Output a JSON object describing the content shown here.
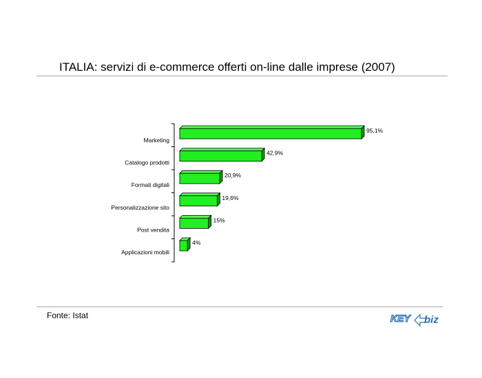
{
  "header": {
    "title": "ITALIA: servizi di e-commerce offerti on-line dalle imprese (2007)"
  },
  "footer": {
    "source": "Fonte: Istat",
    "logo": {
      "text_left": "KEY",
      "text_right": "biz",
      "accent": "#2a6fb5"
    }
  },
  "chart_data": {
    "type": "bar",
    "orientation": "horizontal",
    "style": "3d",
    "categories": [
      "Marketing",
      "Catalogo prodotti",
      "Formati digitali",
      "Personalizzazione sito",
      "Post vendita",
      "Applicazioni mobili"
    ],
    "values": [
      95.1,
      42.9,
      20.9,
      19.6,
      15,
      4
    ],
    "value_labels": [
      "95,1%",
      "42,9%",
      "20,9%",
      "19,6%",
      "15%",
      "4%"
    ],
    "xlim": [
      0,
      100
    ],
    "bar_color": "#22ee22",
    "bar_top_color": "#55ff55",
    "bar_side_color": "#119911",
    "grid": false,
    "legend": "none"
  }
}
